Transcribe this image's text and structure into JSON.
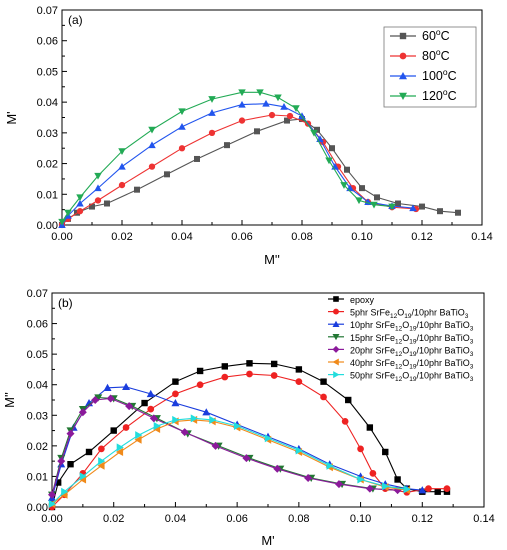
{
  "chart_data": [
    {
      "type": "line",
      "panel": "(a)",
      "xlabel": "M''",
      "ylabel": "M'",
      "xlim": [
        0,
        0.14
      ],
      "ylim": [
        0,
        0.07
      ],
      "x_ticks": [
        "0.00",
        "0.02",
        "0.04",
        "0.06",
        "0.08",
        "0.10",
        "0.12",
        "0.14"
      ],
      "y_ticks": [
        "0.00",
        "0.01",
        "0.02",
        "0.03",
        "0.04",
        "0.05",
        "0.06",
        "0.07"
      ],
      "legend_position": "top-right",
      "series": [
        {
          "name": "60",
          "name_sup": "o",
          "name_suffix": "C",
          "color": "#555555",
          "marker": "square",
          "points": [
            [
              0.0,
              0.0
            ],
            [
              0.002,
              0.002
            ],
            [
              0.005,
              0.004
            ],
            [
              0.01,
              0.006
            ],
            [
              0.015,
              0.007
            ],
            [
              0.025,
              0.0115
            ],
            [
              0.035,
              0.0165
            ],
            [
              0.045,
              0.0215
            ],
            [
              0.055,
              0.026
            ],
            [
              0.065,
              0.0305
            ],
            [
              0.075,
              0.034
            ],
            [
              0.08,
              0.0345
            ],
            [
              0.085,
              0.031
            ],
            [
              0.09,
              0.025
            ],
            [
              0.095,
              0.018
            ],
            [
              0.1,
              0.012
            ],
            [
              0.105,
              0.009
            ],
            [
              0.112,
              0.007
            ],
            [
              0.12,
              0.006
            ],
            [
              0.126,
              0.0045
            ],
            [
              0.132,
              0.004
            ]
          ]
        },
        {
          "name": "80",
          "name_sup": "o",
          "name_suffix": "C",
          "color": "#ee3333",
          "marker": "circle",
          "points": [
            [
              0.0,
              0.0
            ],
            [
              0.002,
              0.002
            ],
            [
              0.006,
              0.0045
            ],
            [
              0.012,
              0.008
            ],
            [
              0.02,
              0.013
            ],
            [
              0.03,
              0.019
            ],
            [
              0.04,
              0.025
            ],
            [
              0.05,
              0.03
            ],
            [
              0.06,
              0.034
            ],
            [
              0.07,
              0.0358
            ],
            [
              0.076,
              0.0355
            ],
            [
              0.082,
              0.033
            ],
            [
              0.087,
              0.027
            ],
            [
              0.092,
              0.019
            ],
            [
              0.097,
              0.012
            ],
            [
              0.102,
              0.0075
            ],
            [
              0.11,
              0.0058
            ],
            [
              0.118,
              0.0052
            ]
          ]
        },
        {
          "name": "100",
          "name_sup": "o",
          "name_suffix": "C",
          "color": "#2255ee",
          "marker": "triangle-up",
          "points": [
            [
              0.0,
              0.0
            ],
            [
              0.002,
              0.003
            ],
            [
              0.006,
              0.007
            ],
            [
              0.012,
              0.012
            ],
            [
              0.02,
              0.019
            ],
            [
              0.03,
              0.026
            ],
            [
              0.04,
              0.032
            ],
            [
              0.05,
              0.0365
            ],
            [
              0.06,
              0.0392
            ],
            [
              0.068,
              0.0395
            ],
            [
              0.074,
              0.0385
            ],
            [
              0.08,
              0.0355
            ],
            [
              0.086,
              0.028
            ],
            [
              0.091,
              0.019
            ],
            [
              0.096,
              0.012
            ],
            [
              0.102,
              0.0075
            ],
            [
              0.11,
              0.0062
            ],
            [
              0.117,
              0.0055
            ]
          ]
        },
        {
          "name": "120",
          "name_sup": "o",
          "name_suffix": "C",
          "color": "#22aa55",
          "marker": "triangle-down",
          "points": [
            [
              0.0,
              0.001
            ],
            [
              0.002,
              0.004
            ],
            [
              0.006,
              0.009
            ],
            [
              0.012,
              0.016
            ],
            [
              0.02,
              0.024
            ],
            [
              0.03,
              0.031
            ],
            [
              0.04,
              0.037
            ],
            [
              0.05,
              0.041
            ],
            [
              0.06,
              0.0432
            ],
            [
              0.066,
              0.0432
            ],
            [
              0.072,
              0.0415
            ],
            [
              0.078,
              0.038
            ],
            [
              0.084,
              0.03
            ],
            [
              0.089,
              0.021
            ],
            [
              0.094,
              0.013
            ],
            [
              0.099,
              0.008
            ],
            [
              0.104,
              0.0066
            ],
            [
              0.11,
              0.006
            ]
          ]
        }
      ]
    },
    {
      "type": "line",
      "panel": "(b)",
      "xlabel": "M'",
      "ylabel": "M''",
      "xlim": [
        0,
        0.14
      ],
      "ylim": [
        0,
        0.07
      ],
      "x_ticks": [
        "0.00",
        "0.02",
        "0.04",
        "0.06",
        "0.08",
        "0.10",
        "0.12",
        "0.14"
      ],
      "y_ticks": [
        "0.00",
        "0.01",
        "0.02",
        "0.03",
        "0.04",
        "0.05",
        "0.06",
        "0.07"
      ],
      "legend_position": "top-right",
      "series": [
        {
          "name": "epoxy",
          "color": "#000000",
          "marker": "square",
          "points": [
            [
              0.0,
              0.0
            ],
            [
              0.002,
              0.008
            ],
            [
              0.006,
              0.014
            ],
            [
              0.012,
              0.018
            ],
            [
              0.02,
              0.025
            ],
            [
              0.03,
              0.034
            ],
            [
              0.04,
              0.041
            ],
            [
              0.048,
              0.0445
            ],
            [
              0.056,
              0.046
            ],
            [
              0.064,
              0.047
            ],
            [
              0.072,
              0.0468
            ],
            [
              0.08,
              0.045
            ],
            [
              0.088,
              0.041
            ],
            [
              0.096,
              0.035
            ],
            [
              0.103,
              0.026
            ],
            [
              0.108,
              0.018
            ],
            [
              0.112,
              0.009
            ],
            [
              0.115,
              0.006
            ],
            [
              0.12,
              0.005
            ],
            [
              0.125,
              0.005
            ],
            [
              0.128,
              0.005
            ]
          ]
        },
        {
          "name": "5phr SrFe12O19/10phr BaTiO3",
          "color": "#ee2222",
          "marker": "circle",
          "points": [
            [
              0.0,
              0.0
            ],
            [
              0.004,
              0.004
            ],
            [
              0.01,
              0.011
            ],
            [
              0.016,
              0.019
            ],
            [
              0.024,
              0.026
            ],
            [
              0.032,
              0.032
            ],
            [
              0.04,
              0.037
            ],
            [
              0.048,
              0.04
            ],
            [
              0.056,
              0.0425
            ],
            [
              0.064,
              0.0435
            ],
            [
              0.072,
              0.043
            ],
            [
              0.08,
              0.041
            ],
            [
              0.088,
              0.036
            ],
            [
              0.095,
              0.028
            ],
            [
              0.1,
              0.019
            ],
            [
              0.104,
              0.011
            ],
            [
              0.108,
              0.006
            ],
            [
              0.115,
              0.0048
            ],
            [
              0.122,
              0.006
            ],
            [
              0.128,
              0.006
            ]
          ]
        },
        {
          "name": "10phr SrFe12O19/10phr BaTiO3",
          "color": "#1a3ddd",
          "marker": "triangle-up",
          "points": [
            [
              0.0,
              0.003
            ],
            [
              0.003,
              0.014
            ],
            [
              0.007,
              0.026
            ],
            [
              0.012,
              0.034
            ],
            [
              0.018,
              0.039
            ],
            [
              0.024,
              0.0393
            ],
            [
              0.032,
              0.037
            ],
            [
              0.04,
              0.034
            ],
            [
              0.05,
              0.031
            ],
            [
              0.06,
              0.027
            ],
            [
              0.07,
              0.023
            ],
            [
              0.08,
              0.019
            ],
            [
              0.09,
              0.014
            ],
            [
              0.1,
              0.01
            ],
            [
              0.108,
              0.0075
            ],
            [
              0.115,
              0.006
            ],
            [
              0.12,
              0.0055
            ]
          ]
        },
        {
          "name": "15phr SrFe12O19/10phr BaTiO3",
          "color": "#227733",
          "marker": "triangle-down",
          "points": [
            [
              0.0,
              0.004
            ],
            [
              0.003,
              0.016
            ],
            [
              0.006,
              0.025
            ],
            [
              0.01,
              0.032
            ],
            [
              0.015,
              0.0358
            ],
            [
              0.02,
              0.0355
            ],
            [
              0.026,
              0.033
            ],
            [
              0.034,
              0.029
            ],
            [
              0.044,
              0.024
            ],
            [
              0.054,
              0.02
            ],
            [
              0.064,
              0.016
            ],
            [
              0.074,
              0.0125
            ],
            [
              0.084,
              0.0095
            ],
            [
              0.094,
              0.0075
            ],
            [
              0.104,
              0.006
            ],
            [
              0.112,
              0.0055
            ]
          ]
        },
        {
          "name": "20phr SrFe12O19/10phr BaTiO3",
          "color": "#8b1a9b",
          "marker": "diamond",
          "points": [
            [
              0.0,
              0.004
            ],
            [
              0.003,
              0.015
            ],
            [
              0.006,
              0.024
            ],
            [
              0.01,
              0.031
            ],
            [
              0.014,
              0.035
            ],
            [
              0.019,
              0.0355
            ],
            [
              0.025,
              0.033
            ],
            [
              0.033,
              0.029
            ],
            [
              0.043,
              0.0245
            ],
            [
              0.053,
              0.02
            ],
            [
              0.063,
              0.016
            ],
            [
              0.073,
              0.0125
            ],
            [
              0.083,
              0.0095
            ],
            [
              0.093,
              0.0075
            ],
            [
              0.103,
              0.006
            ],
            [
              0.112,
              0.0055
            ]
          ]
        },
        {
          "name": "40phr SrFe12O19/10phr BaTiO3",
          "color": "#f08a1a",
          "marker": "triangle-left",
          "points": [
            [
              0.0,
              0.001
            ],
            [
              0.004,
              0.004
            ],
            [
              0.01,
              0.009
            ],
            [
              0.016,
              0.0135
            ],
            [
              0.022,
              0.018
            ],
            [
              0.028,
              0.022
            ],
            [
              0.034,
              0.0255
            ],
            [
              0.04,
              0.028
            ],
            [
              0.046,
              0.0285
            ],
            [
              0.052,
              0.028
            ],
            [
              0.06,
              0.026
            ],
            [
              0.07,
              0.022
            ],
            [
              0.08,
              0.018
            ],
            [
              0.09,
              0.013
            ],
            [
              0.1,
              0.009
            ],
            [
              0.108,
              0.0065
            ],
            [
              0.115,
              0.0055
            ]
          ]
        },
        {
          "name": "50phr SrFe12O19/10phr BaTiO3",
          "color": "#22dddd",
          "marker": "triangle-right",
          "points": [
            [
              0.0,
              0.001
            ],
            [
              0.004,
              0.005
            ],
            [
              0.01,
              0.01
            ],
            [
              0.016,
              0.015
            ],
            [
              0.022,
              0.0195
            ],
            [
              0.028,
              0.0235
            ],
            [
              0.034,
              0.0265
            ],
            [
              0.04,
              0.0285
            ],
            [
              0.046,
              0.029
            ],
            [
              0.052,
              0.0285
            ],
            [
              0.06,
              0.0265
            ],
            [
              0.07,
              0.0225
            ],
            [
              0.08,
              0.0185
            ],
            [
              0.09,
              0.0135
            ],
            [
              0.1,
              0.009
            ],
            [
              0.108,
              0.0068
            ],
            [
              0.115,
              0.0058
            ]
          ]
        }
      ]
    }
  ]
}
